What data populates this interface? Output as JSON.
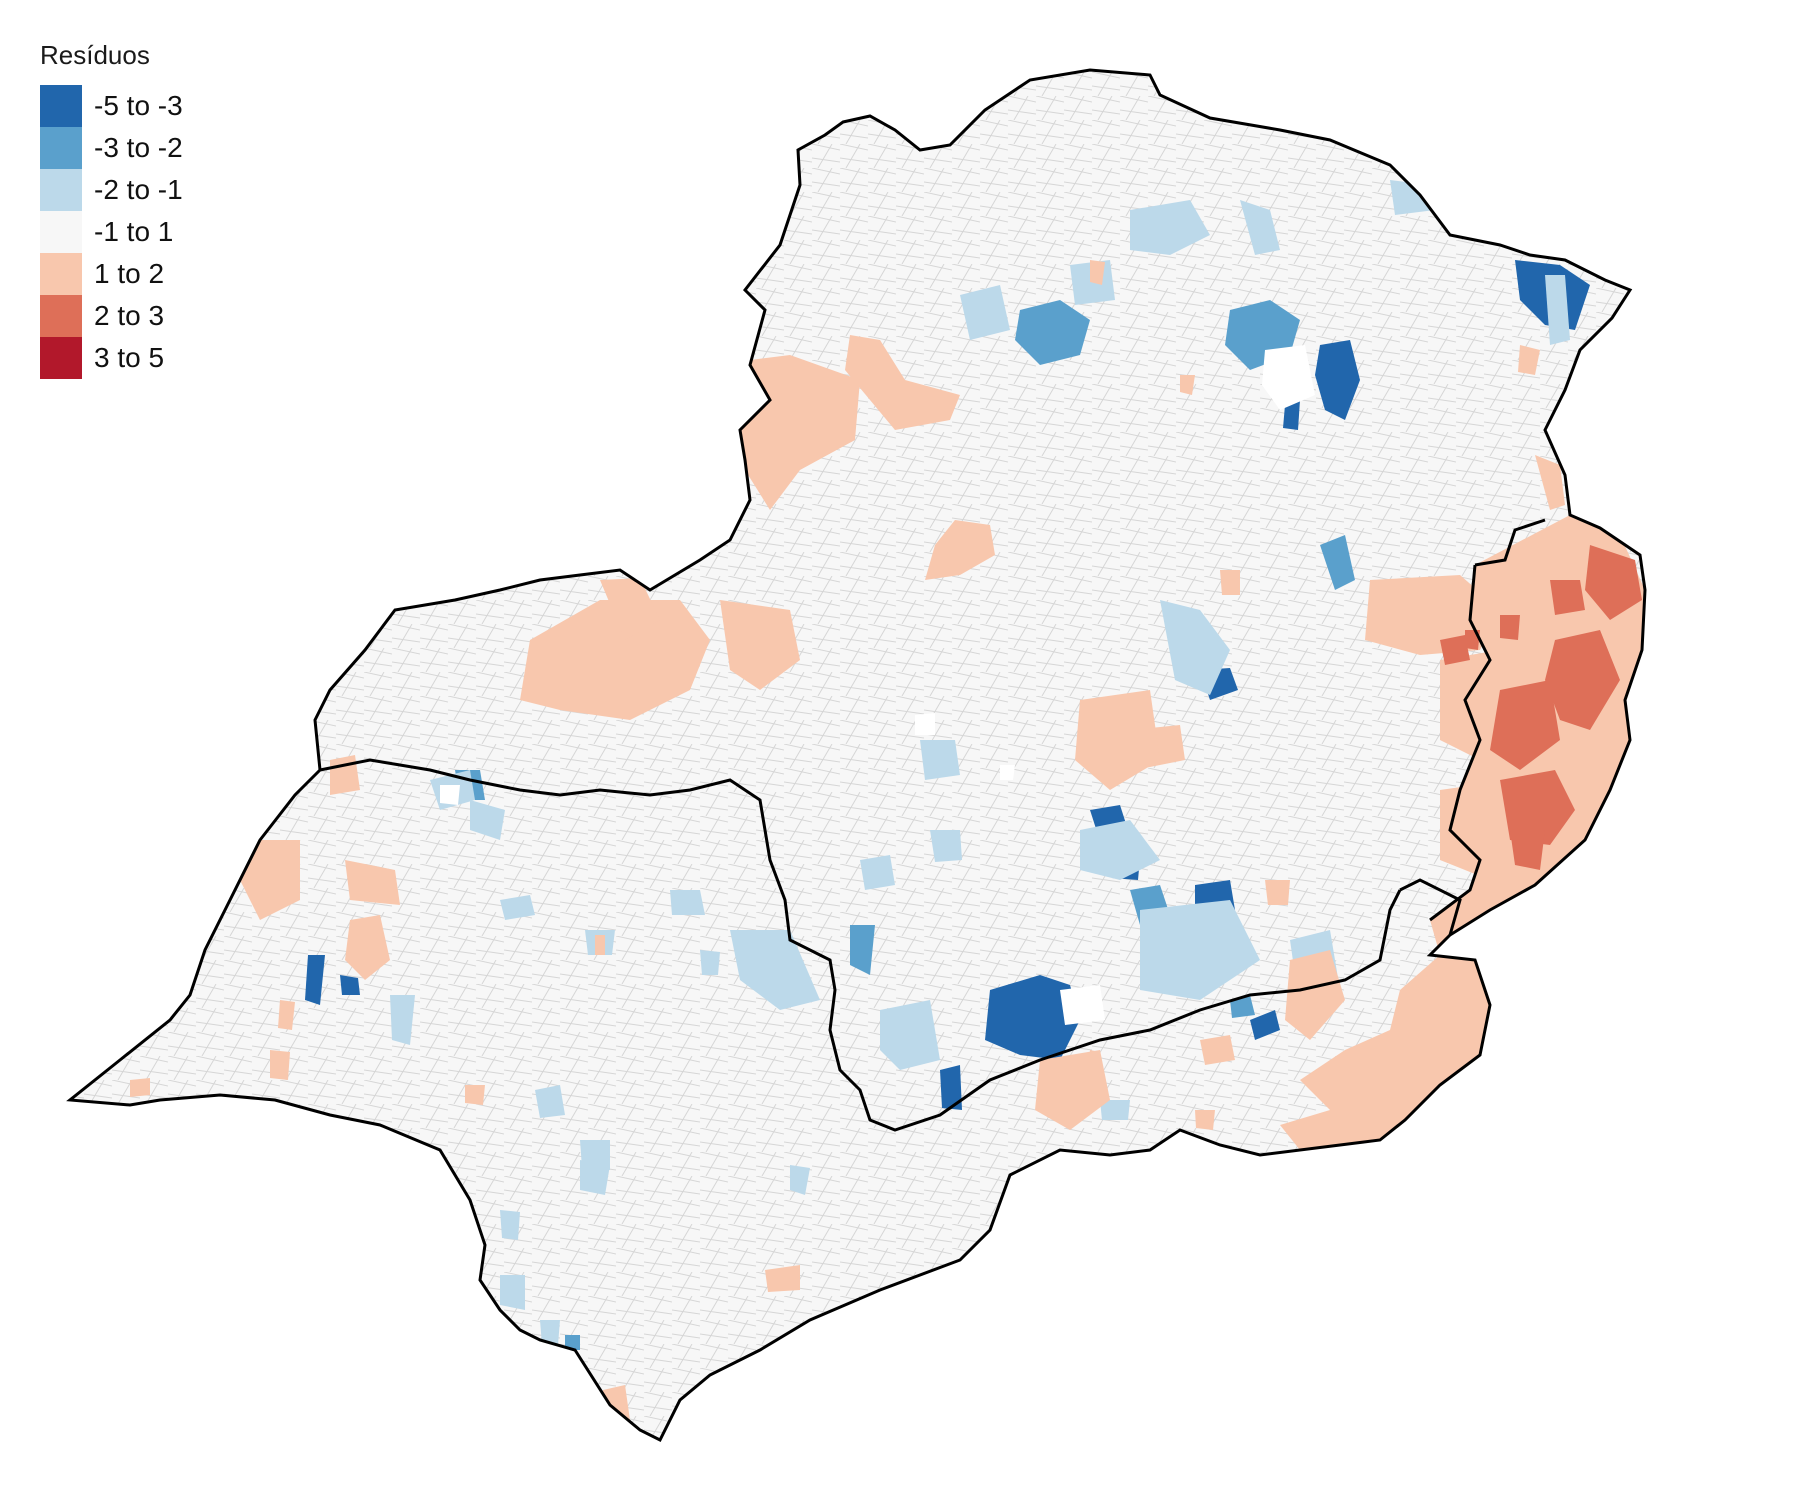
{
  "legend": {
    "title": "Resíduos",
    "items": [
      {
        "label": "-5 to -3",
        "color": "#2166ac"
      },
      {
        "label": "-3 to -2",
        "color": "#5aa0cc"
      },
      {
        "label": "-2 to -1",
        "color": "#bcd9ea"
      },
      {
        "label": "-1 to 1",
        "color": "#f7f7f7"
      },
      {
        "label": "1 to 2",
        "color": "#f8c7ad"
      },
      {
        "label": "2 to 3",
        "color": "#de6f58"
      },
      {
        "label": "3 to 5",
        "color": "#b2182b"
      }
    ]
  },
  "map": {
    "region_color": "#f7f7f7",
    "border_color": "#000000",
    "internal_border_color": "#cccccc"
  }
}
